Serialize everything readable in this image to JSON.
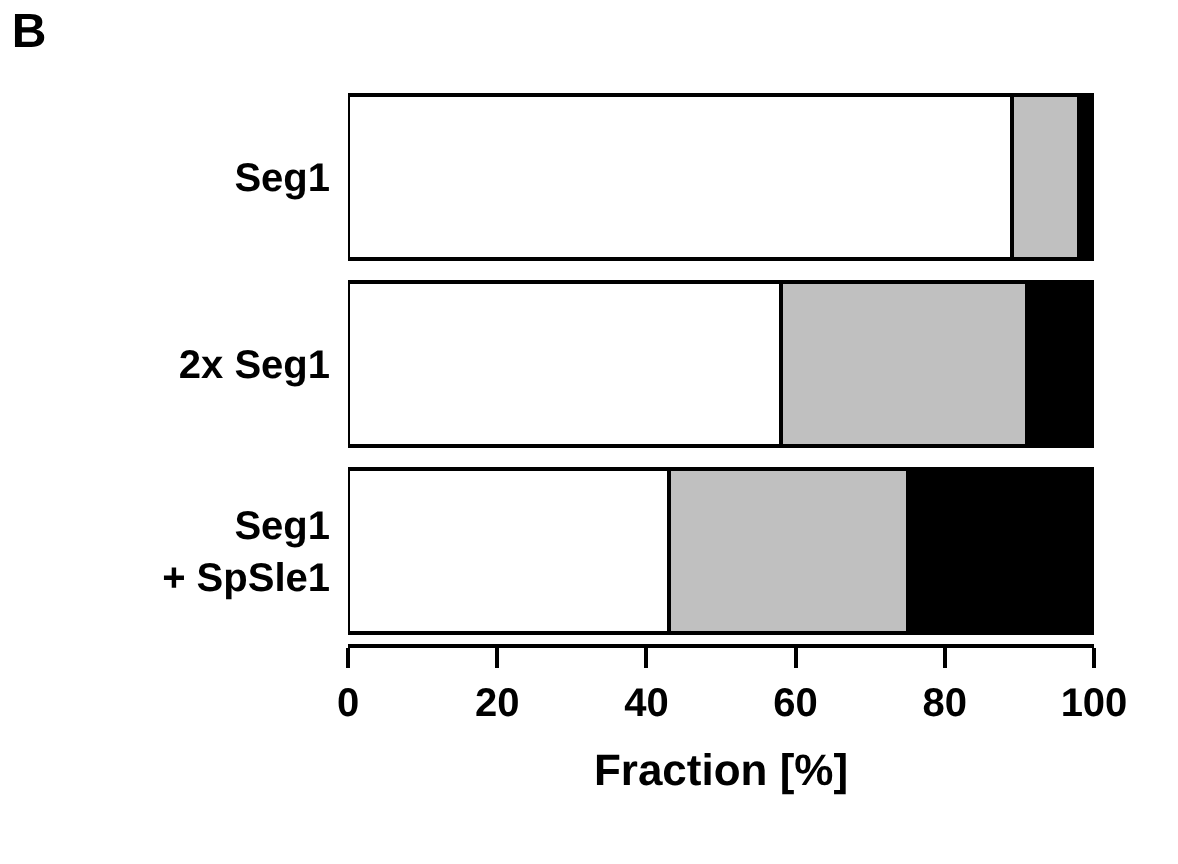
{
  "chart_data": {
    "type": "bar",
    "orientation": "horizontal",
    "stacked": true,
    "title": "B",
    "xlabel": "Fraction [%]",
    "categories": [
      "Seg1",
      "2x Seg1",
      "Seg1\n+ SpSle1"
    ],
    "series": [
      {
        "color": "#ffffff",
        "values": [
          89,
          58,
          43
        ]
      },
      {
        "color": "#c0c0c0",
        "values": [
          9,
          33,
          32
        ]
      },
      {
        "color": "#000000",
        "values": [
          2,
          9,
          25
        ]
      }
    ],
    "xlim": [
      0,
      100
    ],
    "xticks": [
      0,
      20,
      40,
      60,
      80,
      100
    ]
  }
}
